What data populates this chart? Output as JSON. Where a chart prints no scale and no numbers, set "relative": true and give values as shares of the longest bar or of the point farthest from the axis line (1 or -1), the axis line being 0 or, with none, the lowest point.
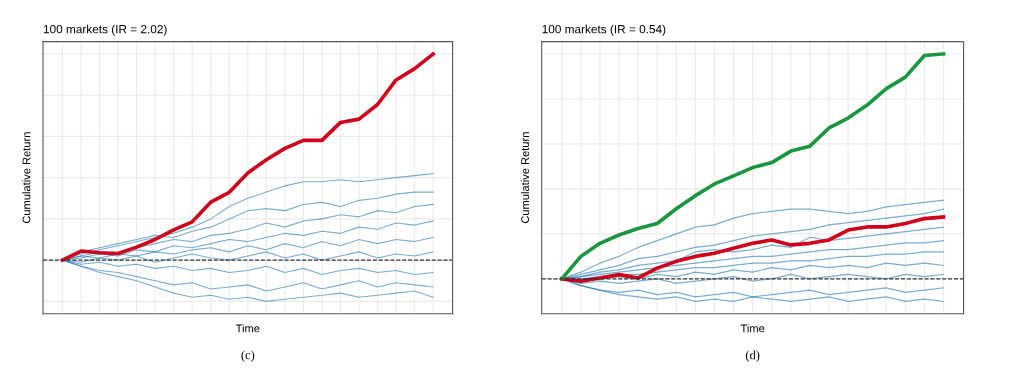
{
  "chart_data": [
    {
      "type": "line",
      "relative": true,
      "title": "100 markets (IR = 2.02)",
      "xlabel": "Time",
      "ylabel": "Cumulative Return",
      "grid": true,
      "line_style": "solid",
      "annotations": [
        "(c)"
      ],
      "categories": [
        null,
        null,
        null,
        null,
        null,
        null,
        null,
        null,
        null,
        null,
        null,
        null,
        null,
        null,
        null,
        null,
        null,
        null,
        null,
        null,
        null
      ],
      "ref_lines": [
        {
          "axis": "y",
          "value": 0,
          "color": "#333333",
          "line_style": "dashed"
        }
      ],
      "series": [
        {
          "color": "#1f77b4",
          "values": [
            0,
            0.03,
            0.05,
            0.07,
            0.09,
            0.11,
            0.13,
            0.16,
            0.2,
            0.26,
            0.3,
            0.33,
            0.36,
            0.38,
            0.38,
            0.39,
            0.38,
            0.39,
            0.4,
            0.41,
            0.42
          ]
        },
        {
          "color": "#1f77b4",
          "values": [
            0,
            0.04,
            0.06,
            0.08,
            0.1,
            0.12,
            0.11,
            0.14,
            0.16,
            0.2,
            0.24,
            0.25,
            0.24,
            0.27,
            0.28,
            0.26,
            0.29,
            0.3,
            0.32,
            0.33,
            0.33
          ]
        },
        {
          "color": "#1f77b4",
          "values": [
            0,
            0.02,
            0.04,
            0.03,
            0.06,
            0.08,
            0.1,
            0.09,
            0.12,
            0.13,
            0.15,
            0.18,
            0.16,
            0.19,
            0.2,
            0.22,
            0.21,
            0.24,
            0.23,
            0.26,
            0.27
          ]
        },
        {
          "color": "#1f77b4",
          "values": [
            0,
            0.01,
            0.03,
            0.02,
            0.05,
            0.04,
            0.07,
            0.06,
            0.08,
            0.1,
            0.09,
            0.11,
            0.13,
            0.12,
            0.14,
            0.13,
            0.16,
            0.15,
            0.18,
            0.17,
            0.19
          ]
        },
        {
          "color": "#1f77b4",
          "values": [
            0,
            0.02,
            0.01,
            0.03,
            0.02,
            0.04,
            0.03,
            0.05,
            0.06,
            0.04,
            0.07,
            0.05,
            0.08,
            0.06,
            0.09,
            0.07,
            0.1,
            0.08,
            0.1,
            0.09,
            0.11
          ]
        },
        {
          "color": "#1f77b4",
          "values": [
            0,
            -0.01,
            0.01,
            0,
            0.02,
            -0.01,
            0.01,
            0.03,
            0.01,
            0,
            0.02,
            0.04,
            0.01,
            0.03,
            0,
            0.02,
            0.04,
            0.01,
            0.03,
            0.02,
            0.04
          ]
        },
        {
          "color": "#1f77b4",
          "values": [
            0,
            -0.02,
            -0.01,
            -0.03,
            -0.02,
            -0.04,
            -0.03,
            -0.05,
            -0.04,
            -0.06,
            -0.05,
            -0.03,
            -0.06,
            -0.04,
            -0.07,
            -0.05,
            -0.04,
            -0.06,
            -0.05,
            -0.07,
            -0.06
          ]
        },
        {
          "color": "#1f77b4",
          "values": [
            0,
            -0.03,
            -0.05,
            -0.06,
            -0.08,
            -0.1,
            -0.12,
            -0.11,
            -0.14,
            -0.13,
            -0.12,
            -0.15,
            -0.13,
            -0.11,
            -0.14,
            -0.12,
            -0.1,
            -0.13,
            -0.11,
            -0.12,
            -0.13
          ]
        },
        {
          "color": "#1f77b4",
          "values": [
            0,
            -0.03,
            -0.06,
            -0.08,
            -0.1,
            -0.13,
            -0.16,
            -0.18,
            -0.17,
            -0.19,
            -0.18,
            -0.2,
            -0.19,
            -0.18,
            -0.17,
            -0.16,
            -0.18,
            -0.17,
            -0.16,
            -0.15,
            -0.18
          ]
        },
        {
          "color": "#d0021b",
          "values": [
            0,
            0.044,
            0.036,
            0.032,
            0.063,
            0.1,
            0.147,
            0.186,
            0.281,
            0.329,
            0.423,
            0.487,
            0.542,
            0.581,
            0.581,
            0.668,
            0.684,
            0.755,
            0.874,
            0.929,
            1.0
          ]
        }
      ]
    },
    {
      "type": "line",
      "relative": true,
      "title": "100 markets (IR = 0.54)",
      "xlabel": "Time",
      "ylabel": "Cumulative Return",
      "grid": true,
      "line_style": "solid",
      "annotations": [
        "(d)"
      ],
      "categories": [
        null,
        null,
        null,
        null,
        null,
        null,
        null,
        null,
        null,
        null,
        null,
        null,
        null,
        null,
        null,
        null,
        null,
        null,
        null,
        null,
        null
      ],
      "ref_lines": [
        {
          "axis": "y",
          "value": 0,
          "color": "#333333",
          "line_style": "dashed"
        }
      ],
      "series": [
        {
          "color": "#1f77b4",
          "values": [
            0,
            0.03,
            0.07,
            0.1,
            0.14,
            0.17,
            0.2,
            0.23,
            0.24,
            0.27,
            0.29,
            0.3,
            0.31,
            0.31,
            0.3,
            0.29,
            0.3,
            0.32,
            0.33,
            0.34,
            0.35
          ]
        },
        {
          "color": "#1f77b4",
          "values": [
            0,
            0.02,
            0.04,
            0.06,
            0.09,
            0.1,
            0.12,
            0.14,
            0.15,
            0.17,
            0.19,
            0.2,
            0.21,
            0.22,
            0.24,
            0.25,
            0.26,
            0.27,
            0.28,
            0.29,
            0.31
          ]
        },
        {
          "color": "#1f77b4",
          "values": [
            0,
            0.01,
            0.03,
            0.04,
            0.06,
            0.07,
            0.08,
            0.12,
            0.13,
            0.12,
            0.13,
            0.15,
            0.14,
            0.185,
            0.17,
            0.18,
            0.19,
            0.2,
            0.21,
            0.22,
            0.23
          ]
        },
        {
          "color": "#1f77b4",
          "values": [
            0,
            0.01,
            0.02,
            0.03,
            0.04,
            0.05,
            0.06,
            0.07,
            0.08,
            0.09,
            0.1,
            0.1,
            0.11,
            0.12,
            0.13,
            0.13,
            0.14,
            0.15,
            0.16,
            0.16,
            0.17
          ]
        },
        {
          "color": "#1f77b4",
          "values": [
            0,
            0,
            0.01,
            0.02,
            0.02,
            0.03,
            0.04,
            0.05,
            0.05,
            0.06,
            0.07,
            0.07,
            0.08,
            0.08,
            0.09,
            0.1,
            0.1,
            0.11,
            0.11,
            0.12,
            0.12
          ]
        },
        {
          "color": "#1f77b4",
          "values": [
            0,
            -0.01,
            0,
            0.01,
            0,
            0.02,
            0.01,
            0.03,
            0.02,
            0.04,
            0.03,
            0.05,
            0.04,
            0.06,
            0.05,
            0.06,
            0.05,
            0.07,
            0.06,
            0.07,
            0.06
          ]
        },
        {
          "color": "#1f77b4",
          "values": [
            0,
            -0.02,
            -0.01,
            -0.02,
            -0.01,
            0,
            -0.02,
            -0.01,
            0,
            0.01,
            -0.01,
            0,
            0.02,
            0,
            0.01,
            0.02,
            0.01,
            0,
            0.02,
            0.01,
            0.02
          ]
        },
        {
          "color": "#1f77b4",
          "values": [
            0,
            -0.03,
            -0.05,
            -0.06,
            -0.05,
            -0.07,
            -0.06,
            -0.08,
            -0.07,
            -0.06,
            -0.08,
            -0.07,
            -0.06,
            -0.05,
            -0.07,
            -0.06,
            -0.05,
            -0.04,
            -0.06,
            -0.05,
            -0.04
          ]
        },
        {
          "color": "#1f77b4",
          "values": [
            0,
            -0.03,
            -0.05,
            -0.07,
            -0.08,
            -0.09,
            -0.08,
            -0.1,
            -0.09,
            -0.1,
            -0.08,
            -0.09,
            -0.1,
            -0.09,
            -0.08,
            -0.1,
            -0.09,
            -0.08,
            -0.1,
            -0.09,
            -0.1
          ]
        },
        {
          "color": "#d0021b",
          "values": [
            0,
            -0.01,
            0.004,
            0.019,
            0.004,
            0.048,
            0.078,
            0.1,
            0.114,
            0.136,
            0.158,
            0.173,
            0.151,
            0.158,
            0.173,
            0.217,
            0.231,
            0.231,
            0.246,
            0.268,
            0.275
          ]
        },
        {
          "color": "#1a9641",
          "values": [
            0,
            0.1,
            0.158,
            0.195,
            0.224,
            0.246,
            0.312,
            0.37,
            0.422,
            0.458,
            0.495,
            0.517,
            0.568,
            0.59,
            0.671,
            0.715,
            0.773,
            0.846,
            0.897,
            0.993,
            1.0
          ]
        }
      ]
    }
  ]
}
